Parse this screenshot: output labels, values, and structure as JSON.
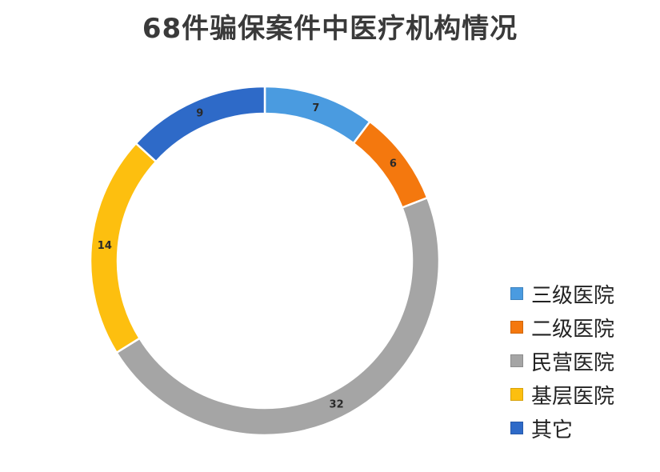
{
  "chart_data": {
    "type": "pie",
    "subtype": "donut",
    "title": "68件骗保案件中医疗机构情况",
    "categories": [
      "三级医院",
      "二级医院",
      "民营医院",
      "基层医院",
      "其它"
    ],
    "values": [
      7,
      6,
      32,
      14,
      9
    ],
    "colors": [
      "#4a9be0",
      "#f4780e",
      "#a5a5a5",
      "#fdbf0f",
      "#2e6ac8"
    ],
    "data_labels": [
      "7",
      "6",
      "32",
      "14",
      "9"
    ],
    "legend_position": "right"
  }
}
